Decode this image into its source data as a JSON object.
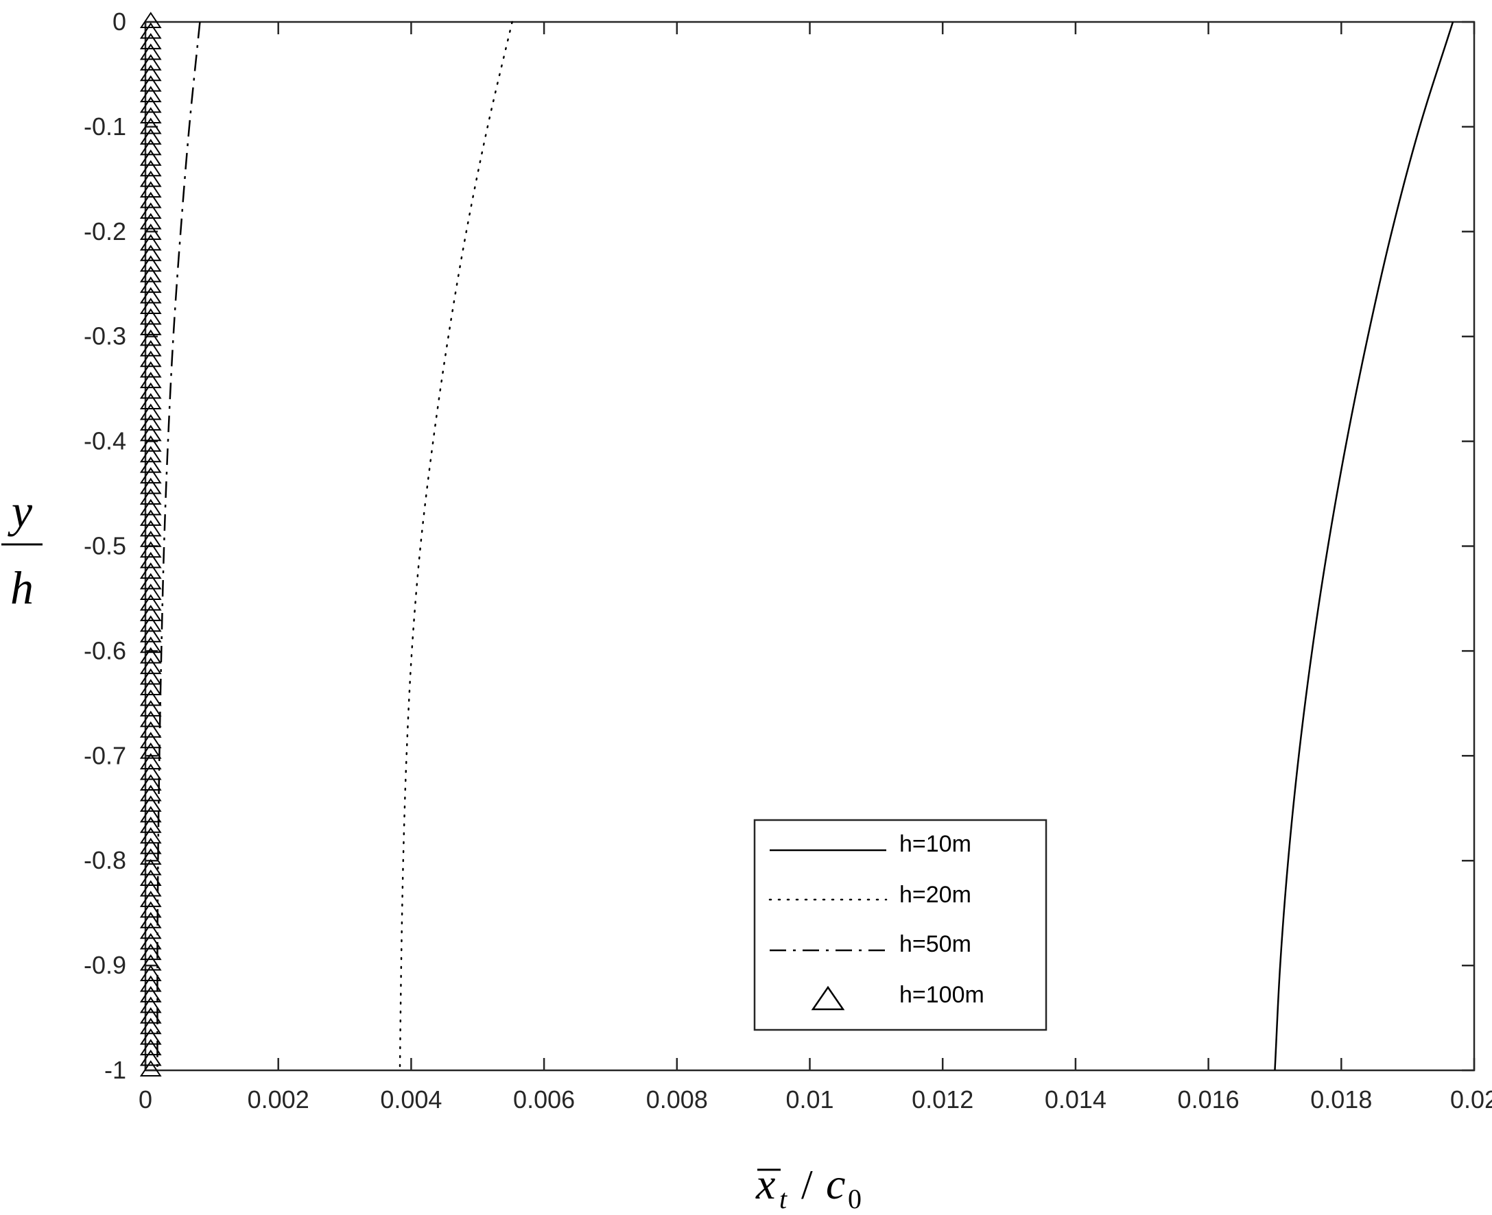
{
  "chart_data": {
    "type": "line",
    "title": "",
    "xlabel": {
      "bar_symbol": "x",
      "subscript": "t",
      "slash": "/",
      "symbol": "c",
      "symbol_subscript": "0"
    },
    "ylabel": {
      "numerator": "y",
      "denominator": "h"
    },
    "xlim": [
      0,
      0.02
    ],
    "ylim": [
      -1,
      0
    ],
    "xticks": [
      "0",
      "0.002",
      "0.004",
      "0.006",
      "0.008",
      "0.01",
      "0.012",
      "0.014",
      "0.016",
      "0.018",
      "0.02"
    ],
    "yticks": [
      "0",
      "-0.1",
      "-0.2",
      "-0.3",
      "-0.4",
      "-0.5",
      "-0.6",
      "-0.7",
      "-0.8",
      "-0.9",
      "-1"
    ],
    "xtick_values": [
      0,
      0.002,
      0.004,
      0.006,
      0.008,
      0.01,
      0.012,
      0.014,
      0.016,
      0.018,
      0.02
    ],
    "ytick_values": [
      0,
      -0.1,
      -0.2,
      -0.3,
      -0.4,
      -0.5,
      -0.6,
      -0.7,
      -0.8,
      -0.9,
      -1
    ],
    "grid": false,
    "legend_position": "bottom-right",
    "series": [
      {
        "name": "h=10m",
        "style": "solid",
        "color": "#000000",
        "y": [
          0,
          -0.1,
          -0.2,
          -0.3,
          -0.4,
          -0.5,
          -0.6,
          -0.7,
          -0.8,
          -0.9,
          -1
        ],
        "x": [
          0.01968,
          0.01918,
          0.01876,
          0.0184,
          0.01808,
          0.0178,
          0.01756,
          0.01736,
          0.0172,
          0.01708,
          0.017
        ]
      },
      {
        "name": "h=20m",
        "style": "dotted",
        "color": "#000000",
        "y": [
          0,
          -0.1,
          -0.2,
          -0.3,
          -0.4,
          -0.5,
          -0.6,
          -0.7,
          -0.8,
          -0.9,
          -1
        ],
        "x": [
          0.00552,
          0.00515,
          0.00483,
          0.00456,
          0.00433,
          0.00414,
          0.00401,
          0.00393,
          0.00388,
          0.00385,
          0.00383
        ]
      },
      {
        "name": "h=50m",
        "style": "dashdot",
        "color": "#000000",
        "y": [
          0,
          -0.1,
          -0.2,
          -0.3,
          -0.4,
          -0.5,
          -0.6,
          -0.7,
          -0.8,
          -0.9,
          -1
        ],
        "x": [
          0.00082,
          0.00066,
          0.00053,
          0.00042,
          0.00034,
          0.00028,
          0.00024,
          0.00021,
          0.00019,
          0.00018,
          0.00018
        ]
      },
      {
        "name": "h=100m",
        "style": "triangle-markers",
        "color": "#000000",
        "y_start": 0,
        "y_end": -1,
        "marker_count": 100,
        "x": 8e-05
      }
    ]
  }
}
